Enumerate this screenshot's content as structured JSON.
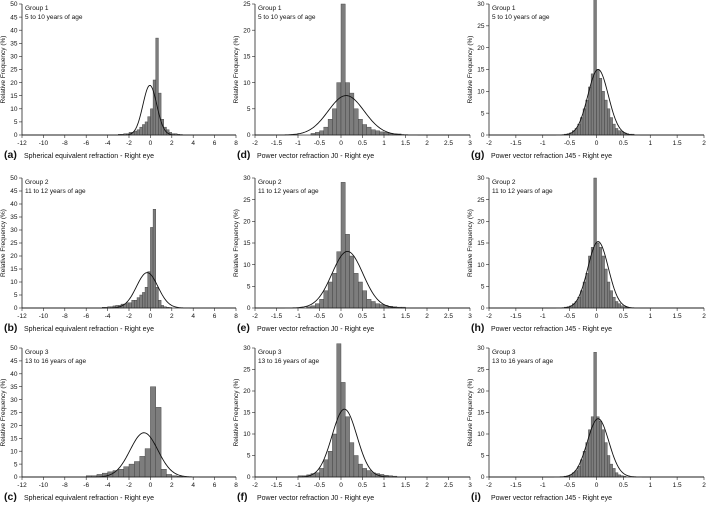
{
  "chart_data": [
    {
      "id": "a",
      "type": "bar",
      "group": "Group 1",
      "age": "5 to 10 years of age",
      "letter": "(a)",
      "xlabel": "Spherical equivalent refraction - Right eye",
      "ylabel": "Relative Frequency (%)",
      "xlim": [
        -12,
        8
      ],
      "xticks": [
        -12,
        -10,
        -8,
        -6,
        -4,
        -2,
        0,
        2,
        4,
        6,
        8
      ],
      "ylim": [
        0,
        50
      ],
      "yticks": [
        0,
        5,
        10,
        15,
        20,
        25,
        30,
        35,
        40,
        45,
        50
      ],
      "binwidth": 0.25,
      "bins_start": -3.0,
      "values": [
        0.3,
        0.3,
        0.5,
        0.5,
        1,
        1,
        1.5,
        2,
        3,
        4,
        5,
        7,
        10,
        21,
        37,
        16,
        6,
        3,
        2,
        1,
        0.5,
        0.5,
        0.3,
        0.2
      ],
      "normal": {
        "mean": -0.05,
        "sd": 0.65
      }
    },
    {
      "id": "d",
      "type": "bar",
      "group": "Group 1",
      "age": "5 to 10 years of age",
      "letter": "(d)",
      "xlabel": "Power vector refraction J0 - Right eye",
      "ylabel": "Relative Frequency (%)",
      "xlim": [
        -2,
        3
      ],
      "xticks": [
        -2,
        -1.5,
        -1,
        -0.5,
        0,
        0.5,
        1,
        1.5,
        2,
        2.5,
        3
      ],
      "ylim": [
        0,
        25
      ],
      "yticks": [
        0,
        5,
        10,
        15,
        20,
        25
      ],
      "binwidth": 0.1,
      "bins_start": -0.7,
      "values": [
        0.3,
        0.5,
        0.8,
        1.5,
        3,
        5,
        10,
        25,
        10,
        8,
        5,
        3,
        2,
        1.5,
        1,
        0.8,
        0.6,
        0.5,
        0.3,
        0.2,
        0.2
      ],
      "normal": {
        "mean": 0.12,
        "sd": 0.42
      }
    },
    {
      "id": "g",
      "type": "bar",
      "group": "Group 1",
      "age": "5 to 10 years of age",
      "letter": "(g)",
      "xlabel": "Power vector refraction J45 - Right eye",
      "ylabel": "Relative Frequency (%)",
      "xlim": [
        -2,
        2
      ],
      "xticks": [
        -2,
        -1.5,
        -1,
        -0.5,
        0,
        0.5,
        1,
        1.5,
        2
      ],
      "ylim": [
        0,
        30
      ],
      "yticks": [
        0,
        5,
        10,
        15,
        20,
        25,
        30
      ],
      "binwidth": 0.05,
      "bins_start": -0.6,
      "values": [
        0.2,
        0.3,
        0.5,
        1,
        1.5,
        2.5,
        4,
        6,
        8,
        11,
        14,
        31,
        15,
        13,
        10,
        8,
        6,
        4,
        2.5,
        1.5,
        1,
        0.8,
        0.5,
        0.3,
        0.2,
        0.2
      ],
      "normal": {
        "mean": 0.03,
        "sd": 0.19
      }
    },
    {
      "id": "b",
      "type": "bar",
      "group": "Group 2",
      "age": "11 to 12 years of age",
      "letter": "(b)",
      "xlabel": "Spherical equivalent refraction - Right eye",
      "ylabel": "Relative Frequency (%)",
      "xlim": [
        -12,
        8
      ],
      "xticks": [
        -12,
        -10,
        -8,
        -6,
        -4,
        -2,
        0,
        2,
        4,
        6,
        8
      ],
      "ylim": [
        0,
        50
      ],
      "yticks": [
        0,
        5,
        10,
        15,
        20,
        25,
        30,
        35,
        40,
        45,
        50
      ],
      "binwidth": 0.25,
      "bins_start": -4.5,
      "values": [
        0.3,
        0.3,
        0.5,
        0.5,
        0.8,
        1,
        1,
        1.5,
        1.5,
        2,
        2,
        3,
        3,
        4,
        5,
        6,
        8,
        14,
        31,
        38,
        8,
        3,
        1,
        0.5,
        0.3,
        0.2
      ],
      "normal": {
        "mean": -0.3,
        "sd": 1.0
      }
    },
    {
      "id": "e",
      "type": "bar",
      "group": "Group 2",
      "age": "11 to 12 years of age",
      "letter": "(e)",
      "xlabel": "Power vector refraction J0 - Right eye",
      "ylabel": "Relative Frequency (%)",
      "xlim": [
        -2,
        3
      ],
      "xticks": [
        -2,
        -1.5,
        -1,
        -0.5,
        0,
        0.5,
        1,
        1.5,
        2,
        2.5,
        3
      ],
      "ylim": [
        0,
        30
      ],
      "yticks": [
        0,
        5,
        10,
        15,
        20,
        25,
        30
      ],
      "binwidth": 0.1,
      "bins_start": -0.8,
      "values": [
        0.3,
        0.5,
        1,
        2,
        4,
        6,
        8,
        13,
        29,
        17,
        12,
        8,
        6,
        4,
        2,
        1.5,
        1,
        0.8,
        0.6,
        0.4,
        0.3,
        0.2,
        0.2
      ],
      "normal": {
        "mean": 0.15,
        "sd": 0.36
      }
    },
    {
      "id": "h",
      "type": "bar",
      "group": "Group 2",
      "age": "11 to 12 years of age",
      "letter": "(h)",
      "xlabel": "Power vector refraction J45 - Right eye",
      "ylabel": "Relative Frequency (%)",
      "xlim": [
        -2,
        2
      ],
      "xticks": [
        -2,
        -1.5,
        -1,
        -0.5,
        0,
        0.5,
        1,
        1.5,
        2
      ],
      "ylim": [
        0,
        30
      ],
      "yticks": [
        0,
        5,
        10,
        15,
        20,
        25,
        30
      ],
      "binwidth": 0.05,
      "bins_start": -0.6,
      "values": [
        0.2,
        0.3,
        0.5,
        1,
        1.5,
        2.5,
        4,
        6,
        8,
        12,
        14,
        30,
        15,
        14,
        12,
        9,
        6,
        4,
        2.5,
        1.5,
        1,
        0.5,
        0.3,
        0.2
      ],
      "normal": {
        "mean": 0.03,
        "sd": 0.19
      }
    },
    {
      "id": "c",
      "type": "bar",
      "group": "Group 3",
      "age": "13 to 16 years of age",
      "letter": "(c)",
      "xlabel": "Spherical equivalent refraction - Right eye",
      "ylabel": "Relative Frequency (%)",
      "xlim": [
        -12,
        8
      ],
      "xticks": [
        -12,
        -10,
        -8,
        -6,
        -4,
        -2,
        0,
        2,
        4,
        6,
        8
      ],
      "ylim": [
        0,
        50
      ],
      "yticks": [
        0,
        5,
        10,
        15,
        20,
        25,
        30,
        35,
        40,
        45,
        50
      ],
      "binwidth": 0.5,
      "bins_start": -6.0,
      "values": [
        0.5,
        0.5,
        1,
        1.5,
        2,
        2.5,
        3,
        4,
        5,
        6,
        8,
        11,
        35,
        27,
        3,
        1,
        0.5,
        0.3
      ],
      "normal": {
        "mean": -0.6,
        "sd": 1.3
      }
    },
    {
      "id": "f",
      "type": "bar",
      "group": "Group 3",
      "age": "13 to 16 years of age",
      "letter": "(f)",
      "xlabel": "Power vector refraction J0 - Right eye",
      "ylabel": "Relative Frequency (%)",
      "xlim": [
        -2,
        3
      ],
      "xticks": [
        -2,
        -1.5,
        -1,
        -0.5,
        0,
        0.5,
        1,
        1.5,
        2,
        2.5,
        3
      ],
      "ylim": [
        0,
        30
      ],
      "yticks": [
        0,
        5,
        10,
        15,
        20,
        25,
        30
      ],
      "binwidth": 0.1,
      "bins_start": -1.0,
      "values": [
        0.3,
        0.3,
        0.5,
        0.8,
        1,
        2,
        4,
        6,
        10,
        31,
        22,
        14,
        8,
        5,
        3,
        2,
        1.5,
        1,
        0.8,
        0.6,
        0.4,
        0.3,
        0.2
      ],
      "normal": {
        "mean": 0.08,
        "sd": 0.29
      }
    },
    {
      "id": "i",
      "type": "bar",
      "group": "Group 3",
      "age": "13 to 16 years of age",
      "letter": "(i)",
      "xlabel": "Power vector refraction J45 - Right eye",
      "ylabel": "Relative Frequency (%)",
      "xlim": [
        -2,
        2
      ],
      "xticks": [
        -2,
        -1.5,
        -1,
        -0.5,
        0,
        0.5,
        1,
        1.5,
        2
      ],
      "ylim": [
        0,
        30
      ],
      "yticks": [
        0,
        5,
        10,
        15,
        20,
        25,
        30
      ],
      "binwidth": 0.05,
      "bins_start": -0.6,
      "values": [
        0.2,
        0.3,
        0.5,
        1,
        1.5,
        2.5,
        4,
        6,
        8,
        11,
        14,
        29,
        14,
        13,
        11,
        8,
        5,
        3,
        2,
        1,
        0.5,
        0.3,
        0.2
      ],
      "normal": {
        "mean": 0.03,
        "sd": 0.2
      }
    }
  ],
  "colors": {
    "bar_fill": "#7d7d7d",
    "bar_stroke": "#3a3a3a",
    "curve": "#111111",
    "axis": "#222222"
  }
}
